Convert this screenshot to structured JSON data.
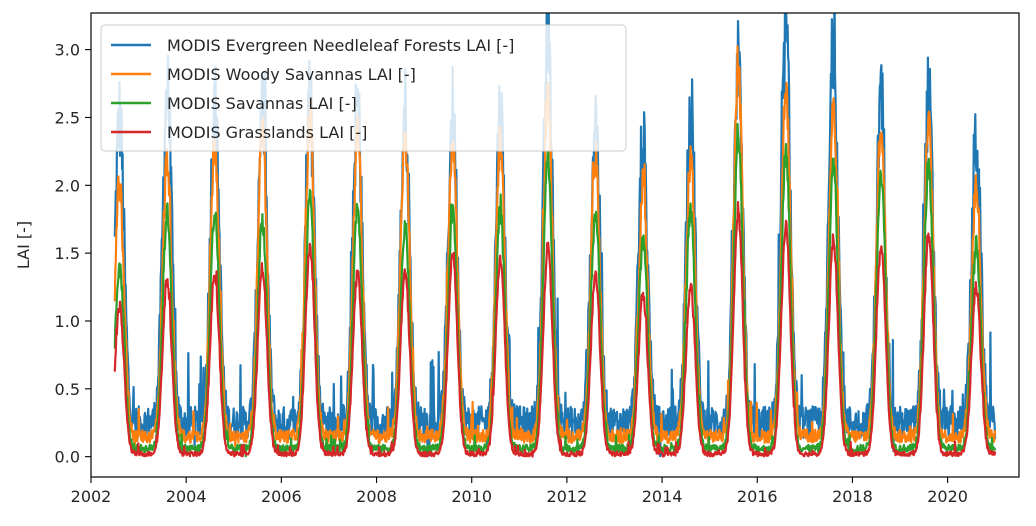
{
  "chart_data": {
    "type": "line",
    "title": "",
    "xlabel": "",
    "ylabel": "LAI [-]",
    "xlim": [
      2002.0,
      2021.5
    ],
    "ylim": [
      -0.15,
      3.27
    ],
    "xticks": [
      2002,
      2004,
      2006,
      2008,
      2010,
      2012,
      2014,
      2016,
      2018,
      2020
    ],
    "yticks": [
      0.0,
      0.5,
      1.0,
      1.5,
      2.0,
      2.5,
      3.0
    ],
    "xtick_labels": [
      "2002",
      "2004",
      "2006",
      "2008",
      "2010",
      "2012",
      "2014",
      "2016",
      "2018",
      "2020"
    ],
    "ytick_labels": [
      "0.0",
      "0.5",
      "1.0",
      "1.5",
      "2.0",
      "2.5",
      "3.0"
    ],
    "grid": false,
    "legend_position": "top-left",
    "x_start": 2002.5,
    "x_end": 2021.0,
    "seasonal_peaks": {
      "years": [
        2002,
        2003,
        2004,
        2005,
        2006,
        2007,
        2008,
        2009,
        2010,
        2011,
        2012,
        2013,
        2014,
        2015,
        2016,
        2017,
        2018,
        2019,
        2020
      ],
      "MODIS Evergreen Needleleaf Forests LAI [-]": [
        2.5,
        2.7,
        2.6,
        2.6,
        2.7,
        2.6,
        2.55,
        2.55,
        2.55,
        3.1,
        2.5,
        2.3,
        2.6,
        2.8,
        3.1,
        3.05,
        2.65,
        2.65,
        2.35
      ],
      "MODIS Woody Savannas LAI [-]": [
        2.0,
        2.2,
        2.3,
        2.4,
        2.45,
        2.4,
        2.35,
        2.35,
        2.3,
        2.65,
        2.2,
        2.0,
        2.2,
        2.85,
        2.7,
        2.55,
        2.45,
        2.45,
        2.0
      ],
      "MODIS Savannas LAI [-]": [
        1.4,
        1.8,
        1.8,
        1.75,
        1.9,
        1.85,
        1.7,
        1.8,
        1.8,
        2.2,
        1.8,
        1.6,
        1.8,
        2.35,
        2.25,
        2.15,
        2.1,
        2.15,
        1.55
      ],
      "MODIS Grasslands LAI [-]": [
        1.1,
        1.3,
        1.35,
        1.4,
        1.55,
        1.35,
        1.35,
        1.5,
        1.45,
        1.55,
        1.35,
        1.2,
        1.25,
        1.8,
        1.7,
        1.6,
        1.55,
        1.65,
        1.25
      ]
    },
    "seasonal_minima": {
      "MODIS Evergreen Needleleaf Forests LAI [-]": 0.25,
      "MODIS Woody Savannas LAI [-]": 0.15,
      "MODIS Savannas LAI [-]": 0.06,
      "MODIS Grasslands LAI [-]": 0.02
    },
    "series": [
      {
        "name": "MODIS Evergreen Needleleaf Forests LAI [-]",
        "color": "#1f77b4",
        "noise": 0.35
      },
      {
        "name": "MODIS Woody Savannas LAI [-]",
        "color": "#ff7f0e",
        "noise": 0.14
      },
      {
        "name": "MODIS Savannas LAI [-]",
        "color": "#2ca02c",
        "noise": 0.08
      },
      {
        "name": "MODIS Grasslands LAI [-]",
        "color": "#d62728",
        "noise": 0.05
      }
    ]
  }
}
